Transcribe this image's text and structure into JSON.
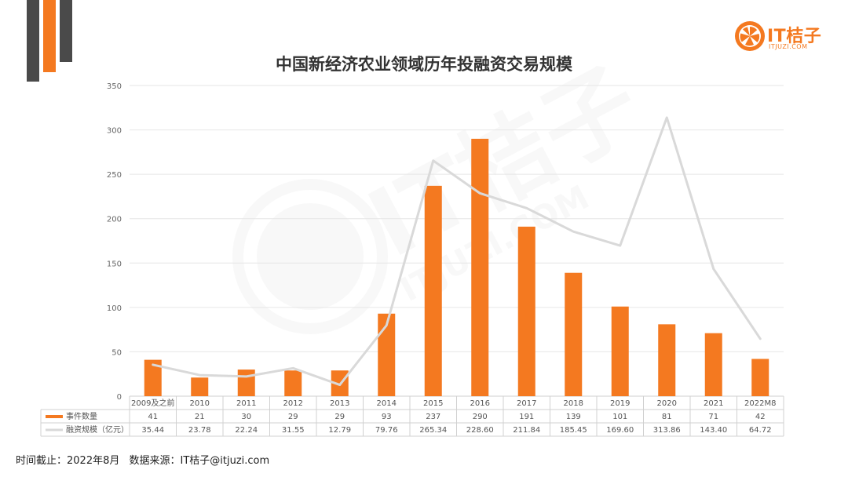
{
  "title": "中国新经济农业领域历年投融资交易规模",
  "logo": {
    "text": "IT桔子",
    "sub": "ITJUZI.COM"
  },
  "footer": {
    "time_label": "时间截止：2022年8月",
    "source_label": "数据来源：IT桔子@itjuzi.com"
  },
  "colors": {
    "accent": "#f47920",
    "line": "#d9d9d9",
    "grid": "#e6e6e6",
    "dark": "#4a4a4a"
  },
  "chart_data": {
    "type": "bar",
    "categories": [
      "2009及之前",
      "2010",
      "2011",
      "2012",
      "2013",
      "2014",
      "2015",
      "2016",
      "2017",
      "2018",
      "2019",
      "2020",
      "2021",
      "2022M8"
    ],
    "series": [
      {
        "name": "事件数量",
        "kind": "bar",
        "values": [
          41,
          21,
          30,
          29,
          29,
          93,
          237,
          290,
          191,
          139,
          101,
          81,
          71,
          42
        ]
      },
      {
        "name": "融资规模（亿元）",
        "kind": "line",
        "values": [
          35.44,
          23.78,
          22.24,
          31.55,
          12.79,
          79.76,
          265.34,
          228.6,
          211.84,
          185.45,
          169.6,
          313.86,
          143.4,
          64.72
        ],
        "labels": [
          "35.44",
          "23.78",
          "22.24",
          "31.55",
          "12.79",
          "79.76",
          "265.34",
          "228.60",
          "211.84",
          "185.45",
          "169.60",
          "313.86",
          "143.40",
          "64.72"
        ]
      }
    ],
    "yticks": [
      0,
      50,
      100,
      150,
      200,
      250,
      300,
      350
    ],
    "ylim": [
      0,
      350
    ],
    "grid": true,
    "legend": "data-table",
    "watermark": "IT桔子 ITJUZI.COM"
  }
}
